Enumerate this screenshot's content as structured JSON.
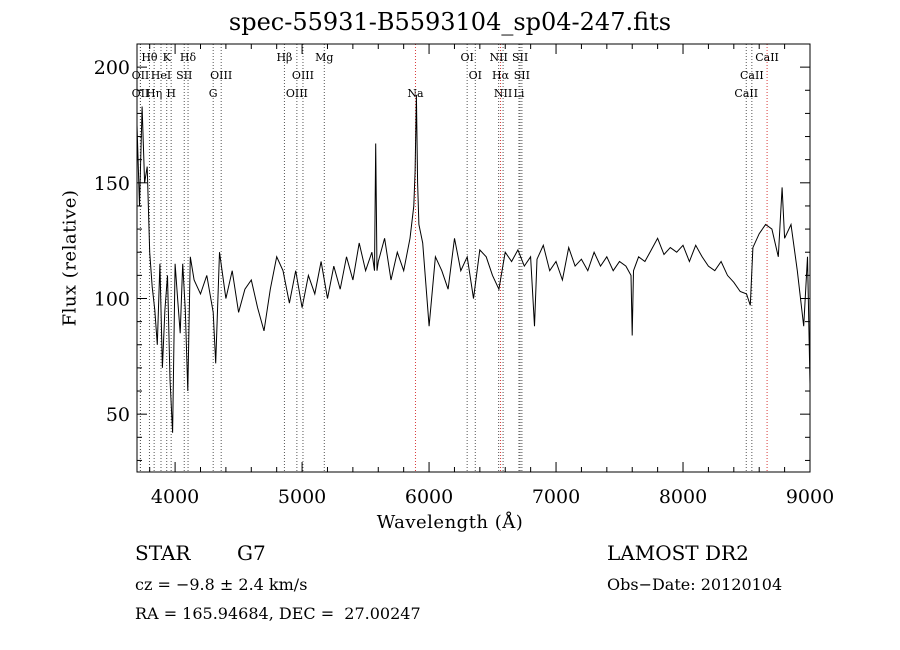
{
  "chart_data": {
    "type": "line",
    "title": "spec-55931-B5593104_sp04-247.fits",
    "xlabel": "Wavelength (Å)",
    "ylabel": "Flux (relative)",
    "xlim": [
      3700,
      9000
    ],
    "ylim": [
      25,
      210
    ],
    "xticks": [
      4000,
      5000,
      6000,
      7000,
      8000,
      9000
    ],
    "yticks": [
      50,
      100,
      150,
      200
    ],
    "series": [
      {
        "color": "#000000",
        "points": [
          [
            3700,
            175
          ],
          [
            3720,
            140
          ],
          [
            3740,
            183
          ],
          [
            3760,
            150
          ],
          [
            3780,
            157
          ],
          [
            3800,
            120
          ],
          [
            3820,
            105
          ],
          [
            3840,
            95
          ],
          [
            3860,
            80
          ],
          [
            3880,
            115
          ],
          [
            3900,
            70
          ],
          [
            3920,
            95
          ],
          [
            3940,
            110
          ],
          [
            3960,
            65
          ],
          [
            3980,
            42
          ],
          [
            4000,
            115
          ],
          [
            4020,
            100
          ],
          [
            4040,
            85
          ],
          [
            4060,
            115
          ],
          [
            4080,
            95
          ],
          [
            4100,
            60
          ],
          [
            4120,
            118
          ],
          [
            4150,
            108
          ],
          [
            4200,
            102
          ],
          [
            4250,
            110
          ],
          [
            4300,
            94
          ],
          [
            4320,
            72
          ],
          [
            4350,
            120
          ],
          [
            4400,
            100
          ],
          [
            4450,
            112
          ],
          [
            4500,
            94
          ],
          [
            4550,
            104
          ],
          [
            4600,
            108
          ],
          [
            4650,
            96
          ],
          [
            4700,
            86
          ],
          [
            4750,
            104
          ],
          [
            4800,
            118
          ],
          [
            4850,
            112
          ],
          [
            4900,
            98
          ],
          [
            4950,
            112
          ],
          [
            5000,
            96
          ],
          [
            5050,
            110
          ],
          [
            5100,
            102
          ],
          [
            5150,
            116
          ],
          [
            5200,
            100
          ],
          [
            5250,
            114
          ],
          [
            5300,
            104
          ],
          [
            5350,
            118
          ],
          [
            5400,
            108
          ],
          [
            5450,
            124
          ],
          [
            5500,
            112
          ],
          [
            5550,
            120
          ],
          [
            5570,
            112
          ],
          [
            5580,
            167
          ],
          [
            5590,
            112
          ],
          [
            5600,
            116
          ],
          [
            5650,
            126
          ],
          [
            5700,
            108
          ],
          [
            5750,
            120
          ],
          [
            5800,
            112
          ],
          [
            5850,
            126
          ],
          [
            5880,
            140
          ],
          [
            5890,
            155
          ],
          [
            5900,
            188
          ],
          [
            5910,
            150
          ],
          [
            5920,
            132
          ],
          [
            5950,
            124
          ],
          [
            6000,
            88
          ],
          [
            6050,
            118
          ],
          [
            6100,
            112
          ],
          [
            6150,
            104
          ],
          [
            6200,
            126
          ],
          [
            6250,
            112
          ],
          [
            6300,
            118
          ],
          [
            6350,
            100
          ],
          [
            6400,
            121
          ],
          [
            6450,
            118
          ],
          [
            6500,
            110
          ],
          [
            6550,
            104
          ],
          [
            6600,
            120
          ],
          [
            6650,
            116
          ],
          [
            6700,
            121
          ],
          [
            6750,
            114
          ],
          [
            6800,
            118
          ],
          [
            6830,
            88
          ],
          [
            6850,
            117
          ],
          [
            6900,
            123
          ],
          [
            6950,
            112
          ],
          [
            7000,
            116
          ],
          [
            7050,
            108
          ],
          [
            7100,
            122
          ],
          [
            7150,
            114
          ],
          [
            7200,
            117
          ],
          [
            7250,
            112
          ],
          [
            7300,
            120
          ],
          [
            7350,
            114
          ],
          [
            7400,
            118
          ],
          [
            7450,
            112
          ],
          [
            7500,
            116
          ],
          [
            7550,
            114
          ],
          [
            7590,
            110
          ],
          [
            7600,
            84
          ],
          [
            7610,
            112
          ],
          [
            7650,
            118
          ],
          [
            7700,
            116
          ],
          [
            7750,
            121
          ],
          [
            7800,
            126
          ],
          [
            7850,
            119
          ],
          [
            7900,
            122
          ],
          [
            7950,
            120
          ],
          [
            8000,
            123
          ],
          [
            8050,
            116
          ],
          [
            8100,
            123
          ],
          [
            8150,
            118
          ],
          [
            8200,
            114
          ],
          [
            8250,
            112
          ],
          [
            8300,
            116
          ],
          [
            8350,
            110
          ],
          [
            8400,
            107
          ],
          [
            8450,
            103
          ],
          [
            8500,
            102
          ],
          [
            8530,
            97
          ],
          [
            8550,
            122
          ],
          [
            8600,
            128
          ],
          [
            8650,
            132
          ],
          [
            8700,
            130
          ],
          [
            8750,
            118
          ],
          [
            8780,
            148
          ],
          [
            8800,
            126
          ],
          [
            8850,
            132
          ],
          [
            8900,
            112
          ],
          [
            8950,
            88
          ],
          [
            8980,
            118
          ],
          [
            9000,
            63
          ]
        ]
      }
    ],
    "lines": [
      {
        "label": "Hθ",
        "wl": 3798,
        "color": "black",
        "row": 0
      },
      {
        "label": "K",
        "wl": 3934,
        "color": "black",
        "row": 0
      },
      {
        "label": "Hδ",
        "wl": 4102,
        "color": "black",
        "row": 0
      },
      {
        "label": "OII",
        "wl": 3727,
        "color": "black",
        "row": 1
      },
      {
        "label": "HeI",
        "wl": 3889,
        "color": "black",
        "row": 1
      },
      {
        "label": "SII",
        "wl": 4072,
        "color": "black",
        "row": 1
      },
      {
        "label": "OIII",
        "wl": 4363,
        "color": "black",
        "row": 1
      },
      {
        "label": "OII",
        "wl": 3727,
        "color": "black",
        "row": 2
      },
      {
        "label": "Hη",
        "wl": 3835,
        "color": "black",
        "row": 2
      },
      {
        "label": "H",
        "wl": 3969,
        "color": "black",
        "row": 2
      },
      {
        "label": "G",
        "wl": 4300,
        "color": "black",
        "row": 2
      },
      {
        "label": "Hβ",
        "wl": 4861,
        "color": "black",
        "row": 0
      },
      {
        "label": "Mg",
        "wl": 5175,
        "color": "black",
        "row": 0
      },
      {
        "label": "OIII",
        "wl": 5007,
        "color": "black",
        "row": 1
      },
      {
        "label": "OIII",
        "wl": 4959,
        "color": "black",
        "row": 2
      },
      {
        "label": "Na",
        "wl": 5893,
        "color": "red",
        "row": 2
      },
      {
        "label": "OI",
        "wl": 6300,
        "color": "black",
        "row": 0
      },
      {
        "label": "OI",
        "wl": 6364,
        "color": "black",
        "row": 1
      },
      {
        "label": "NII",
        "wl": 6548,
        "color": "black",
        "row": 0
      },
      {
        "label": "SII",
        "wl": 6717,
        "color": "black",
        "row": 0
      },
      {
        "label": "Hα",
        "wl": 6563,
        "color": "red",
        "row": 1
      },
      {
        "label": "SII",
        "wl": 6731,
        "color": "black",
        "row": 1
      },
      {
        "label": "NII",
        "wl": 6583,
        "color": "black",
        "row": 2
      },
      {
        "label": "Li",
        "wl": 6708,
        "color": "black",
        "row": 2
      },
      {
        "label": "CaII",
        "wl": 8662,
        "color": "red",
        "row": 0
      },
      {
        "label": "CaII",
        "wl": 8542,
        "color": "black",
        "row": 1
      },
      {
        "label": "CaII",
        "wl": 8498,
        "color": "black",
        "row": 2
      }
    ]
  },
  "info": {
    "class_label": "STAR",
    "subclass": "G7",
    "survey": "LAMOST DR2",
    "cz": "cz = −9.8 ± 2.4 km/s",
    "obs_date": "Obs−Date: 20120104",
    "coords": "RA = 165.94684, DEC =  27.00247"
  }
}
